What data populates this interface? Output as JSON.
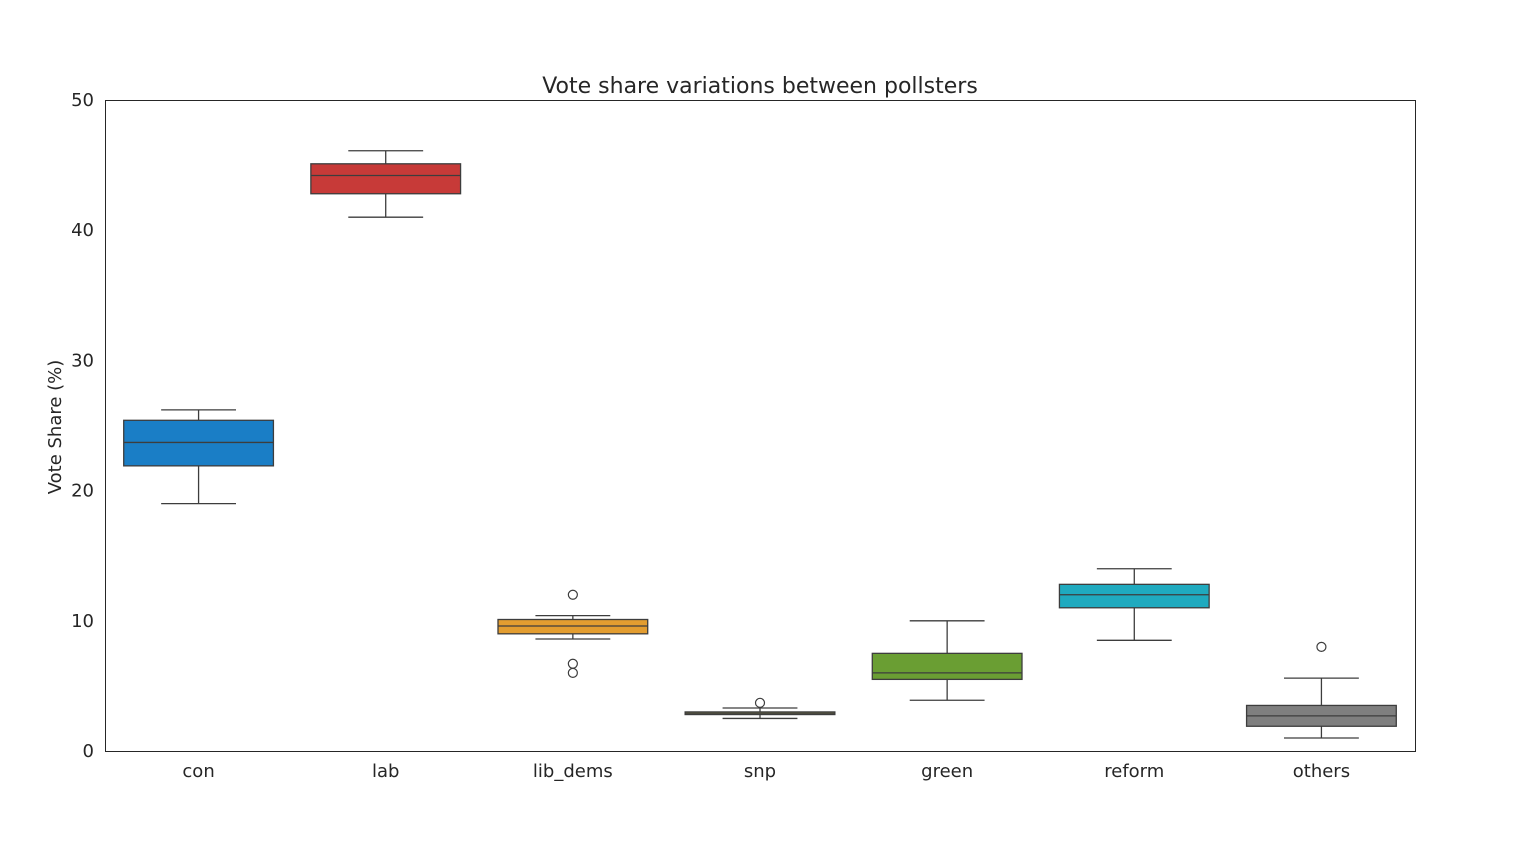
{
  "chart_data": {
    "type": "box",
    "title": "Vote share variations between pollsters",
    "xlabel": "",
    "ylabel": "Vote Share (%)",
    "ylim": [
      0,
      50
    ],
    "yticks": [
      0,
      10,
      20,
      30,
      40,
      50
    ],
    "grid": false,
    "legend": "none",
    "categories": [
      "con",
      "lab",
      "lib_dems",
      "snp",
      "green",
      "reform",
      "others"
    ],
    "series": [
      {
        "category": "con",
        "color": "#1a7ec6",
        "whisker_low": 19.0,
        "q1": 21.9,
        "median": 23.7,
        "q3": 25.4,
        "whisker_high": 26.2,
        "outliers": []
      },
      {
        "category": "lab",
        "color": "#c73a38",
        "whisker_low": 41.0,
        "q1": 42.8,
        "median": 44.2,
        "q3": 45.1,
        "whisker_high": 46.1,
        "outliers": []
      },
      {
        "category": "lib_dems",
        "color": "#e39d30",
        "whisker_low": 8.6,
        "q1": 9.0,
        "median": 9.6,
        "q3": 10.1,
        "whisker_high": 10.4,
        "outliers": [
          12.0,
          6.7,
          6.0
        ]
      },
      {
        "category": "snp",
        "color": "#c1b946",
        "whisker_low": 2.5,
        "q1": 2.8,
        "median": 2.9,
        "q3": 3.0,
        "whisker_high": 3.3,
        "outliers": [
          3.7
        ]
      },
      {
        "category": "green",
        "color": "#6a9e33",
        "whisker_low": 3.9,
        "q1": 5.5,
        "median": 6.0,
        "q3": 7.5,
        "whisker_high": 10.0,
        "outliers": []
      },
      {
        "category": "reform",
        "color": "#1faabf",
        "whisker_low": 8.5,
        "q1": 11.0,
        "median": 12.0,
        "q3": 12.8,
        "whisker_high": 14.0,
        "outliers": []
      },
      {
        "category": "others",
        "color": "#7f7f7f",
        "whisker_low": 1.0,
        "q1": 1.9,
        "median": 2.7,
        "q3": 3.5,
        "whisker_high": 5.6,
        "outliers": [
          8.0
        ]
      }
    ]
  }
}
